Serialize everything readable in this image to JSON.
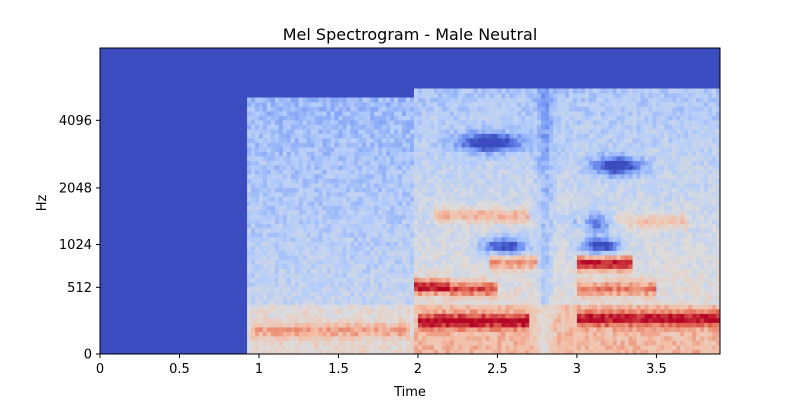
{
  "chart_data": {
    "type": "heatmap",
    "title": "Mel Spectrogram - Male Neutral",
    "xlabel": "Time",
    "ylabel": "Hz",
    "xlim": [
      0,
      3.9
    ],
    "x_ticks": [
      {
        "value": 0,
        "label": "0"
      },
      {
        "value": 0.5,
        "label": "0.5"
      },
      {
        "value": 1,
        "label": "1"
      },
      {
        "value": 1.5,
        "label": "1.5"
      },
      {
        "value": 2,
        "label": "2"
      },
      {
        "value": 2.5,
        "label": "2.5"
      },
      {
        "value": 3,
        "label": "3"
      },
      {
        "value": 3.5,
        "label": "3.5"
      }
    ],
    "y_scale": "mel",
    "ylim": [
      0,
      8000
    ],
    "y_ticks": [
      {
        "value": 0,
        "label": "0"
      },
      {
        "value": 512,
        "label": "512"
      },
      {
        "value": 1024,
        "label": "1024"
      },
      {
        "value": 2048,
        "label": "2048"
      },
      {
        "value": 4096,
        "label": "4096"
      }
    ],
    "colormap": "coolwarm",
    "colormap_stops": [
      "#3b4cc0",
      "#7396f5",
      "#b4cdfa",
      "#dddcdc",
      "#f4bfa7",
      "#e57058",
      "#b40426"
    ],
    "background_color": "#3b4cc0",
    "silence_until": 0.93,
    "signal_upper_hz": 5100,
    "onset_time": 1.98,
    "onset_upper_hz": 5500,
    "pause_times": [
      2.8
    ],
    "harmonic_bands": [
      {
        "t_start": 1.98,
        "t_end": 2.2,
        "hz": 520,
        "level": 0.95
      },
      {
        "t_start": 2.2,
        "t_end": 2.5,
        "hz": 500,
        "level": 0.85
      },
      {
        "t_start": 2.0,
        "t_end": 2.7,
        "hz": 220,
        "level": 0.82
      },
      {
        "t_start": 2.45,
        "t_end": 2.75,
        "hz": 800,
        "level": 0.75
      },
      {
        "t_start": 3.0,
        "t_end": 3.35,
        "hz": 780,
        "level": 0.98
      },
      {
        "t_start": 3.0,
        "t_end": 3.9,
        "hz": 240,
        "level": 0.8
      },
      {
        "t_start": 3.0,
        "t_end": 3.5,
        "hz": 500,
        "level": 0.75
      },
      {
        "t_start": 2.1,
        "t_end": 2.7,
        "hz": 1500,
        "level": 0.7
      },
      {
        "t_start": 3.0,
        "t_end": 3.7,
        "hz": 1400,
        "level": 0.65
      },
      {
        "t_start": 0.95,
        "t_end": 1.95,
        "hz": 150,
        "level": 0.65
      }
    ],
    "dark_spots": [
      {
        "t": 3.12,
        "hz": 1380,
        "w": 0.12
      },
      {
        "t": 2.55,
        "hz": 1000,
        "w": 0.15
      },
      {
        "t": 3.15,
        "hz": 1000,
        "w": 0.12
      },
      {
        "t": 3.25,
        "hz": 2600,
        "w": 0.15
      },
      {
        "t": 2.45,
        "hz": 3300,
        "w": 0.2
      }
    ]
  }
}
